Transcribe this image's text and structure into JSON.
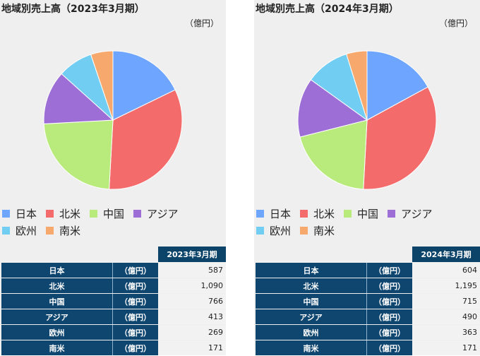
{
  "colors": {
    "日本": "#6ea5ff",
    "北米": "#f46b6b",
    "中国": "#b9ea7c",
    "アジア": "#9c6ed6",
    "欧州": "#72cdf2",
    "南米": "#f7a86d"
  },
  "chart_data": [
    {
      "type": "pie",
      "title": "地域別売上高（2023年3月期）",
      "unit_label": "（億円）",
      "categories": [
        "日本",
        "北米",
        "中国",
        "アジア",
        "欧州",
        "南米"
      ],
      "values": [
        587,
        1090,
        766,
        413,
        269,
        171
      ]
    },
    {
      "type": "pie",
      "title": "地域別売上高（2024年3月期）",
      "unit_label": "（億円）",
      "categories": [
        "日本",
        "北米",
        "中国",
        "アジア",
        "欧州",
        "南米"
      ],
      "values": [
        604,
        1195,
        715,
        490,
        363,
        171
      ]
    }
  ],
  "tables": [
    {
      "header": "2023年3月期",
      "unit": "（億円）",
      "rows": [
        {
          "region": "日本",
          "value": "587"
        },
        {
          "region": "北米",
          "value": "1,090"
        },
        {
          "region": "中国",
          "value": "766"
        },
        {
          "region": "アジア",
          "value": "413"
        },
        {
          "region": "欧州",
          "value": "269"
        },
        {
          "region": "南米",
          "value": "171"
        }
      ]
    },
    {
      "header": "2024年3月期",
      "unit": "（億円）",
      "rows": [
        {
          "region": "日本",
          "value": "604"
        },
        {
          "region": "北米",
          "value": "1,195"
        },
        {
          "region": "中国",
          "value": "715"
        },
        {
          "region": "アジア",
          "value": "490"
        },
        {
          "region": "欧州",
          "value": "363"
        },
        {
          "region": "南米",
          "value": "171"
        }
      ]
    }
  ]
}
